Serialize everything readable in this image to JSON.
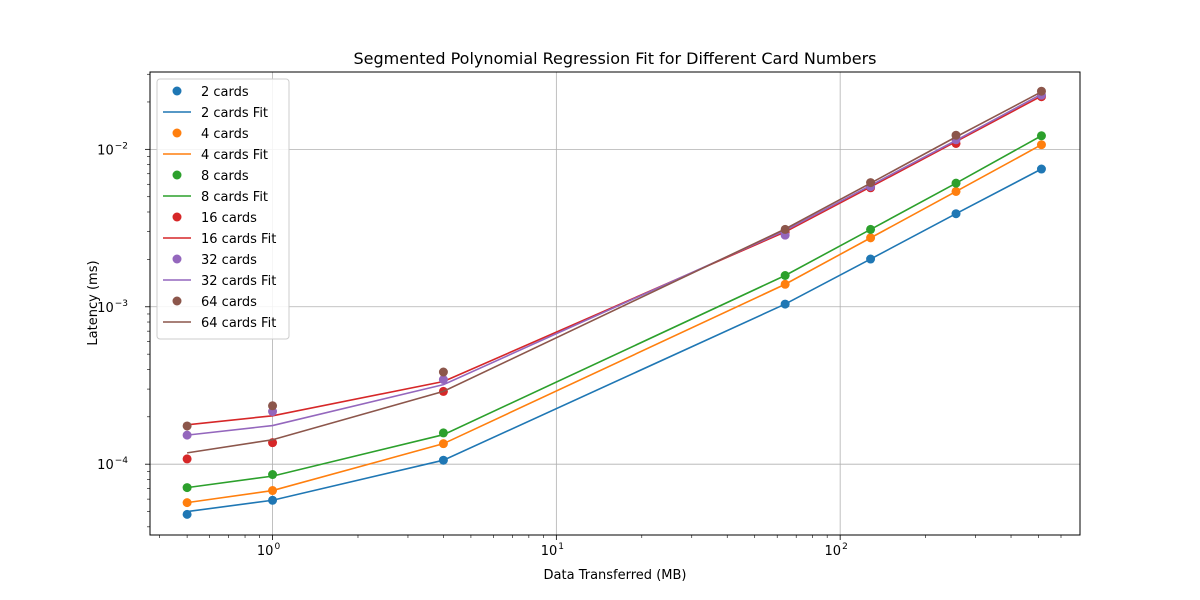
{
  "chart_data": {
    "type": "line",
    "title": "Segmented Polynomial Regression Fit for Different Card Numbers",
    "xlabel": "Data Transferred (MB)",
    "ylabel": "Latency (ms)",
    "xscale": "log",
    "yscale": "log",
    "xlim": [
      0.37,
      700
    ],
    "ylim": [
      3.55e-05,
      0.031
    ],
    "grid": true,
    "legend_position": "top-left",
    "x": [
      0.5,
      1,
      4,
      64,
      128,
      256,
      512
    ],
    "x_ticks": [
      {
        "value": 1,
        "base": "10",
        "exp": "0"
      },
      {
        "value": 10,
        "base": "10",
        "exp": "1"
      },
      {
        "value": 100,
        "base": "10",
        "exp": "2"
      }
    ],
    "y_ticks": [
      {
        "value": 0.0001,
        "base": "10",
        "exp": "−4"
      },
      {
        "value": 0.001,
        "base": "10",
        "exp": "−3"
      },
      {
        "value": 0.01,
        "base": "10",
        "exp": "−2"
      }
    ],
    "series": [
      {
        "name": "2 cards",
        "fit_name": "2 cards Fit",
        "color": "#1f77b4",
        "points": [
          4.8e-05,
          5.9e-05,
          0.000106,
          0.00104,
          0.00201,
          0.0039,
          0.0075
        ],
        "fit": [
          5e-05,
          5.9e-05,
          0.000106,
          0.00104,
          0.00201,
          0.0039,
          0.0075
        ]
      },
      {
        "name": "4 cards",
        "fit_name": "4 cards Fit",
        "color": "#ff7f0e",
        "points": [
          5.7e-05,
          6.8e-05,
          0.000135,
          0.00139,
          0.00274,
          0.0054,
          0.0107
        ],
        "fit": [
          5.7e-05,
          6.8e-05,
          0.000135,
          0.00139,
          0.00274,
          0.0054,
          0.0107
        ]
      },
      {
        "name": "8 cards",
        "fit_name": "8 cards Fit",
        "color": "#2ca02c",
        "points": [
          7.1e-05,
          8.6e-05,
          0.000158,
          0.00158,
          0.0031,
          0.0061,
          0.0122
        ],
        "fit": [
          7.1e-05,
          8.4e-05,
          0.000154,
          0.00158,
          0.0031,
          0.0061,
          0.0122
        ]
      },
      {
        "name": "16 cards",
        "fit_name": "16 cards Fit",
        "color": "#d62728",
        "points": [
          0.000108,
          0.000137,
          0.00029,
          0.00298,
          0.0057,
          0.0109,
          0.0216
        ],
        "fit": [
          0.000178,
          0.000203,
          0.000335,
          0.00299,
          0.00577,
          0.0112,
          0.0218
        ]
      },
      {
        "name": "32 cards",
        "fit_name": "32 cards Fit",
        "color": "#9467bd",
        "points": [
          0.000153,
          0.000216,
          0.000345,
          0.00285,
          0.0058,
          0.0115,
          0.0221
        ],
        "fit": [
          0.000153,
          0.000176,
          0.00032,
          0.00305,
          0.0059,
          0.0114,
          0.0224
        ]
      },
      {
        "name": "64 cards",
        "fit_name": "64 cards Fit",
        "color": "#8c564b",
        "points": [
          0.000175,
          0.000235,
          0.000385,
          0.0031,
          0.00615,
          0.0123,
          0.0234
        ],
        "fit": [
          0.000118,
          0.000143,
          0.00029,
          0.00312,
          0.0061,
          0.012,
          0.0232
        ]
      }
    ]
  }
}
